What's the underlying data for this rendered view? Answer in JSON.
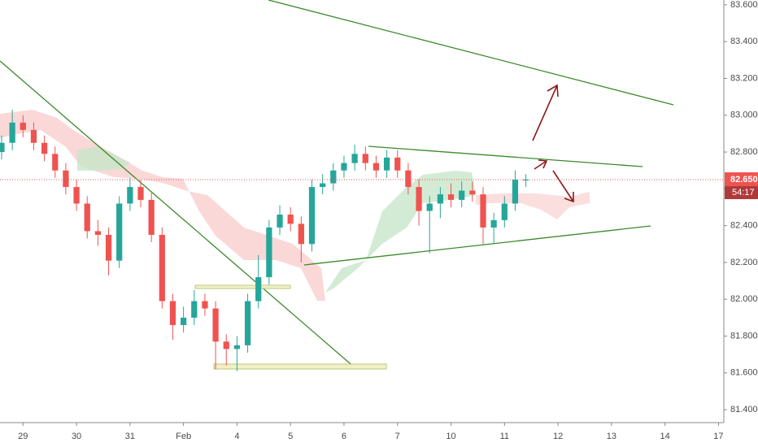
{
  "chart_data": {
    "type": "candlestick",
    "x": [
      -0.4,
      -0.2,
      0,
      0.2,
      0.4,
      0.6,
      0.8,
      1,
      1.2,
      1.4,
      1.6,
      1.8,
      2,
      2.2,
      2.4,
      2.6,
      2.8,
      3,
      3.2,
      3.4,
      3.6,
      3.8,
      4,
      4.2,
      4.4,
      4.6,
      4.8,
      5,
      5.2,
      5.4,
      5.6,
      5.8,
      6,
      6.2,
      6.4,
      6.6,
      6.8,
      7,
      7.2,
      7.4,
      7.6,
      7.8,
      8,
      8.2,
      8.4,
      8.6,
      8.8,
      9,
      9.2,
      9.4
    ],
    "open": [
      82.8,
      82.85,
      82.96,
      82.92,
      82.85,
      82.79,
      82.7,
      82.61,
      82.52,
      82.37,
      82.35,
      82.21,
      82.52,
      82.61,
      82.54,
      82.35,
      81.99,
      81.86,
      81.9,
      81.99,
      81.95,
      81.77,
      81.73,
      81.75,
      81.99,
      82.12,
      82.39,
      82.46,
      82.41,
      82.3,
      82.61,
      82.63,
      82.7,
      82.74,
      82.79,
      82.74,
      82.7,
      82.77,
      82.7,
      82.61,
      82.48,
      82.52,
      82.57,
      82.54,
      82.59,
      82.57,
      82.39,
      82.43,
      82.52,
      82.65
    ],
    "high": [
      82.89,
      83.03,
      83.0,
      82.96,
      82.89,
      82.83,
      82.74,
      82.65,
      82.56,
      82.43,
      82.39,
      82.56,
      82.66,
      82.65,
      82.58,
      82.39,
      82.03,
      81.96,
      82.05,
      82.03,
      81.99,
      81.81,
      81.8,
      82.03,
      82.24,
      82.43,
      82.51,
      82.5,
      82.45,
      82.65,
      82.68,
      82.74,
      82.78,
      82.84,
      82.83,
      82.78,
      82.81,
      82.81,
      82.74,
      82.65,
      82.56,
      82.61,
      82.63,
      82.64,
      82.64,
      82.61,
      82.47,
      82.56,
      82.7,
      82.68
    ],
    "low": [
      82.76,
      82.81,
      82.88,
      82.81,
      82.75,
      82.66,
      82.57,
      82.48,
      82.33,
      82.29,
      82.13,
      82.17,
      82.48,
      82.5,
      82.31,
      81.95,
      81.78,
      81.82,
      81.86,
      81.91,
      81.62,
      81.64,
      81.61,
      81.71,
      81.95,
      82.08,
      82.35,
      82.37,
      82.2,
      82.26,
      82.57,
      82.59,
      82.66,
      82.7,
      82.7,
      82.66,
      82.66,
      82.66,
      82.57,
      82.4,
      82.25,
      82.44,
      82.5,
      82.5,
      82.53,
      82.3,
      82.3,
      82.39,
      82.48,
      82.61
    ],
    "close": [
      82.85,
      82.96,
      82.92,
      82.85,
      82.79,
      82.7,
      82.61,
      82.52,
      82.37,
      82.35,
      82.21,
      82.52,
      82.61,
      82.54,
      82.35,
      81.99,
      81.86,
      81.9,
      81.99,
      81.95,
      81.77,
      81.73,
      81.75,
      81.99,
      82.12,
      82.39,
      82.46,
      82.41,
      82.3,
      82.61,
      82.63,
      82.7,
      82.74,
      82.79,
      82.74,
      82.7,
      82.77,
      82.7,
      82.61,
      82.48,
      82.52,
      82.57,
      82.54,
      82.59,
      82.57,
      82.39,
      82.43,
      82.52,
      82.65,
      82.65
    ],
    "up_color": "#26a69a",
    "down_color": "#ef5350",
    "xlim": [
      -0.43,
      13.1
    ],
    "xticks": [
      {
        "value": 0,
        "label": "29"
      },
      {
        "value": 1,
        "label": "30"
      },
      {
        "value": 2,
        "label": "31"
      },
      {
        "value": 3,
        "label": "Feb"
      },
      {
        "value": 4,
        "label": "4"
      },
      {
        "value": 5,
        "label": "5"
      },
      {
        "value": 6,
        "label": "6"
      },
      {
        "value": 7,
        "label": "7"
      },
      {
        "value": 8,
        "label": "10"
      },
      {
        "value": 9,
        "label": "11"
      },
      {
        "value": 10,
        "label": "12"
      },
      {
        "value": 11,
        "label": "13"
      },
      {
        "value": 12,
        "label": "14"
      },
      {
        "value": 13,
        "label": "17"
      }
    ],
    "ylim": [
      81.374,
      83.626
    ],
    "yticks": [
      {
        "value": 81.4,
        "label": "81.400"
      },
      {
        "value": 81.6,
        "label": "81.600"
      },
      {
        "value": 81.8,
        "label": "81.800"
      },
      {
        "value": 82.0,
        "label": "82.000"
      },
      {
        "value": 82.2,
        "label": "82.200"
      },
      {
        "value": 82.4,
        "label": "82.400"
      },
      {
        "value": 82.6,
        "label": "82.600"
      },
      {
        "value": 82.8,
        "label": "82.800"
      },
      {
        "value": 83.0,
        "label": "83.000"
      },
      {
        "value": 83.2,
        "label": "83.200"
      },
      {
        "value": 83.4,
        "label": "83.400"
      },
      {
        "value": 83.6,
        "label": "83.600"
      }
    ],
    "last_price": {
      "value": 82.65,
      "label": "82.650"
    },
    "countdown": "54:17"
  }
}
